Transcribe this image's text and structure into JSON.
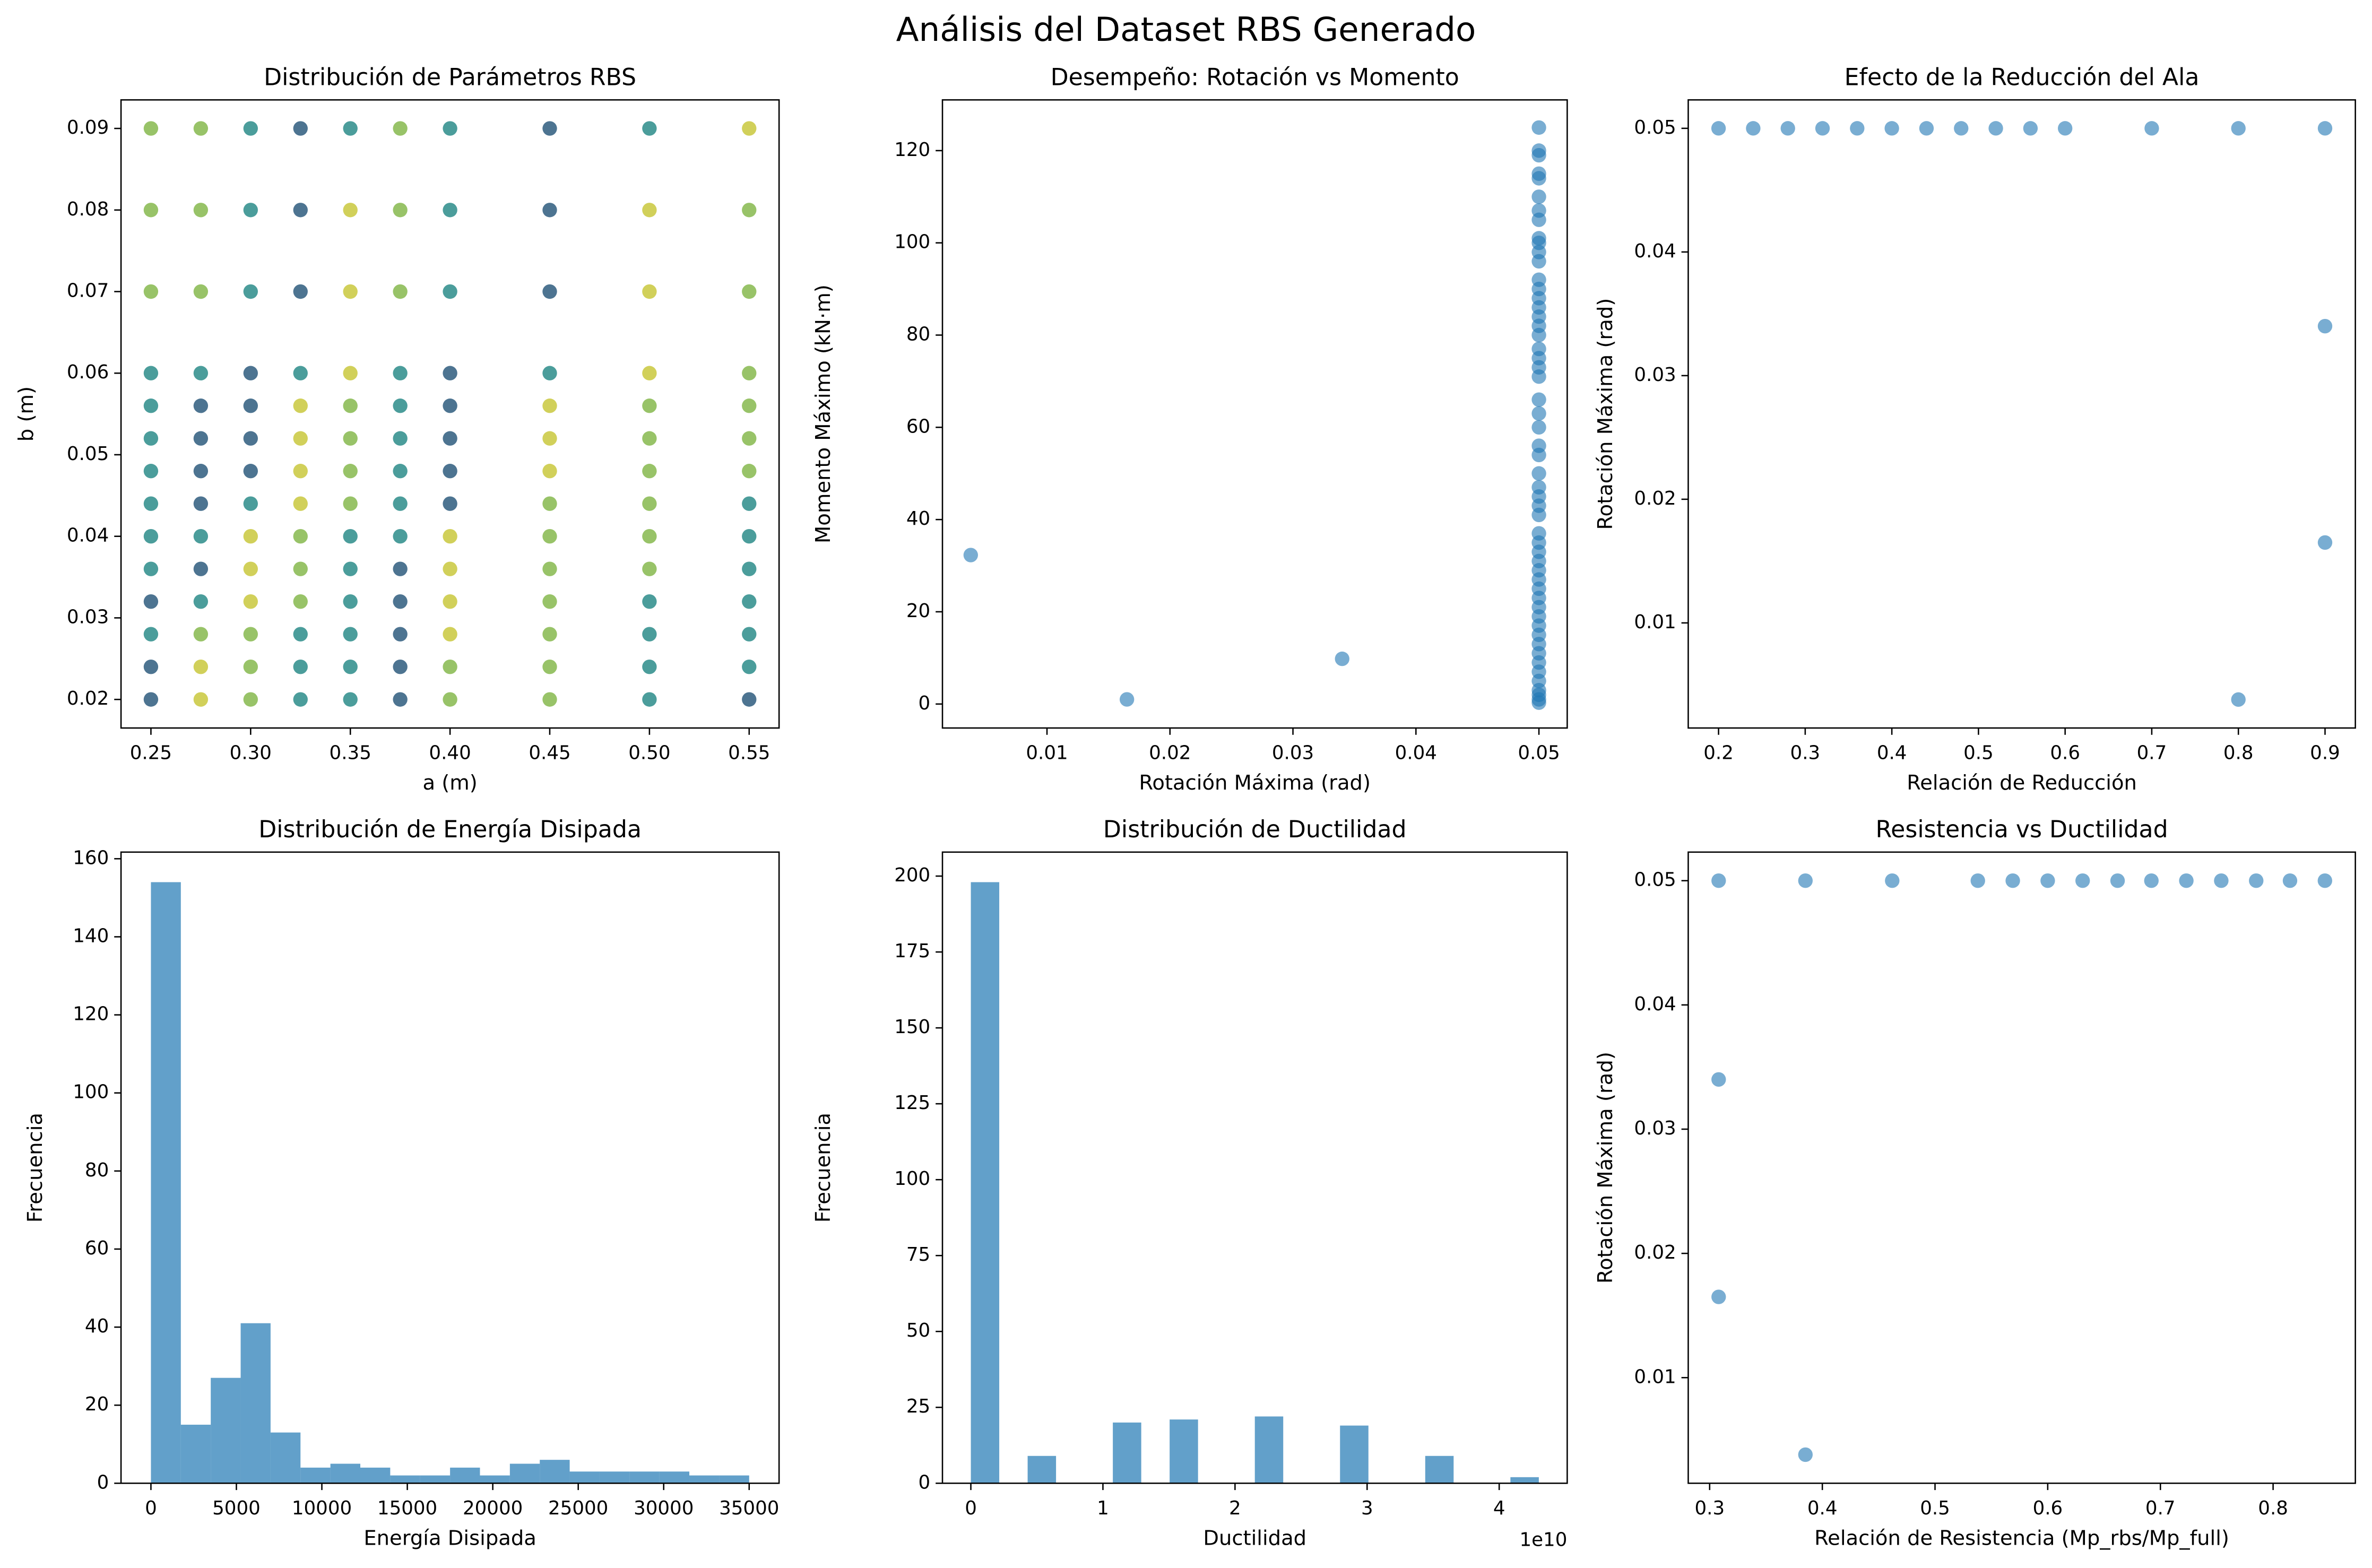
{
  "title": "Análisis del Dataset RBS Generado",
  "chart_data": [
    {
      "type": "scatter",
      "title": "Distribución de Parámetros RBS",
      "x_label": "a (m)",
      "y_label": "b (m)",
      "xlim": [
        0.235,
        0.565
      ],
      "xticks": [
        0.25,
        {
          "value": 0.3,
          "label": "0.30"
        },
        0.35,
        {
          "value": 0.4,
          "label": "0.40"
        },
        0.45,
        {
          "value": 0.5,
          "label": "0.50"
        },
        0.55
      ],
      "ylim": [
        0.0165,
        0.0935
      ],
      "yticks": [
        0.02,
        0.03,
        0.04,
        0.05,
        0.06,
        0.07,
        0.08,
        0.09
      ],
      "alpha": 0.85,
      "series": [
        {
          "color": "#2e5c7e",
          "x": [
            0.25,
            0.25,
            0.25,
            0.275,
            0.275,
            0.275,
            0.275,
            0.275,
            0.3,
            0.3,
            0.3,
            0.3,
            0.325,
            0.325,
            0.325,
            0.375,
            0.375,
            0.375,
            0.375,
            0.375,
            0.4,
            0.4,
            0.4,
            0.4,
            0.4,
            0.45,
            0.45,
            0.45,
            0.55
          ],
          "y": [
            0.032,
            0.024,
            0.02,
            0.056,
            0.052,
            0.048,
            0.044,
            0.036,
            0.06,
            0.056,
            0.052,
            0.048,
            0.09,
            0.08,
            0.07,
            0.036,
            0.032,
            0.028,
            0.024,
            0.02,
            0.06,
            0.056,
            0.052,
            0.048,
            0.044,
            0.09,
            0.08,
            0.07,
            0.02
          ]
        },
        {
          "color": "#2c8c8a",
          "x": [
            0.25,
            0.25,
            0.25,
            0.25,
            0.25,
            0.25,
            0.25,
            0.25,
            0.275,
            0.275,
            0.275,
            0.3,
            0.3,
            0.3,
            0.3,
            0.325,
            0.325,
            0.325,
            0.325,
            0.35,
            0.35,
            0.35,
            0.35,
            0.35,
            0.35,
            0.35,
            0.375,
            0.375,
            0.375,
            0.375,
            0.375,
            0.375,
            0.4,
            0.4,
            0.4,
            0.45,
            0.5,
            0.5,
            0.5,
            0.5,
            0.5,
            0.55,
            0.55,
            0.55,
            0.55,
            0.55,
            0.55
          ],
          "y": [
            0.06,
            0.056,
            0.052,
            0.048,
            0.044,
            0.04,
            0.036,
            0.028,
            0.06,
            0.04,
            0.032,
            0.09,
            0.08,
            0.07,
            0.044,
            0.06,
            0.028,
            0.024,
            0.02,
            0.09,
            0.04,
            0.036,
            0.032,
            0.028,
            0.024,
            0.02,
            0.06,
            0.056,
            0.052,
            0.048,
            0.044,
            0.04,
            0.09,
            0.08,
            0.07,
            0.06,
            0.09,
            0.032,
            0.028,
            0.024,
            0.02,
            0.044,
            0.04,
            0.036,
            0.032,
            0.028,
            0.024
          ]
        },
        {
          "color": "#86b84e",
          "x": [
            0.25,
            0.25,
            0.25,
            0.275,
            0.275,
            0.275,
            0.275,
            0.3,
            0.3,
            0.3,
            0.325,
            0.325,
            0.325,
            0.35,
            0.35,
            0.35,
            0.35,
            0.375,
            0.375,
            0.375,
            0.4,
            0.4,
            0.45,
            0.45,
            0.45,
            0.45,
            0.45,
            0.45,
            0.45,
            0.5,
            0.5,
            0.5,
            0.5,
            0.5,
            0.5,
            0.55,
            0.55,
            0.55,
            0.55,
            0.55,
            0.55
          ],
          "y": [
            0.09,
            0.08,
            0.07,
            0.09,
            0.08,
            0.07,
            0.028,
            0.028,
            0.024,
            0.02,
            0.04,
            0.036,
            0.032,
            0.056,
            0.052,
            0.048,
            0.044,
            0.09,
            0.08,
            0.07,
            0.024,
            0.02,
            0.044,
            0.04,
            0.036,
            0.032,
            0.028,
            0.024,
            0.02,
            0.056,
            0.052,
            0.048,
            0.044,
            0.04,
            0.036,
            0.08,
            0.07,
            0.06,
            0.056,
            0.052,
            0.048
          ]
        },
        {
          "color": "#c9c83d",
          "x": [
            0.275,
            0.275,
            0.3,
            0.3,
            0.3,
            0.325,
            0.325,
            0.325,
            0.325,
            0.35,
            0.35,
            0.35,
            0.4,
            0.4,
            0.4,
            0.4,
            0.45,
            0.45,
            0.45,
            0.5,
            0.5,
            0.5,
            0.55
          ],
          "y": [
            0.024,
            0.02,
            0.04,
            0.036,
            0.032,
            0.056,
            0.052,
            0.048,
            0.044,
            0.08,
            0.07,
            0.06,
            0.04,
            0.036,
            0.032,
            0.028,
            0.056,
            0.052,
            0.048,
            0.08,
            0.07,
            0.06,
            0.09
          ]
        }
      ]
    },
    {
      "type": "scatter",
      "title": "Desempeño: Rotación vs Momento",
      "x_label": "Rotación Máxima (rad)",
      "y_label": "Momento Máximo (kN·m)",
      "xlim": [
        0.0015,
        0.0523
      ],
      "xticks": [
        0.01,
        0.02,
        0.03,
        0.04,
        0.05
      ],
      "ylim": [
        -5.2,
        131
      ],
      "yticks": [
        0,
        20,
        40,
        60,
        80,
        100,
        120
      ],
      "alpha": 0.6,
      "series": [
        {
          "color": "#1f77b4",
          "x": [
            0.0038,
            0.0165,
            0.034,
            0.05,
            0.05,
            0.05,
            0.05,
            0.05,
            0.05,
            0.05,
            0.05,
            0.05,
            0.05,
            0.05,
            0.05,
            0.05,
            0.05,
            0.05,
            0.05,
            0.05,
            0.05,
            0.05,
            0.05,
            0.05,
            0.05,
            0.05,
            0.05,
            0.05,
            0.05,
            0.05,
            0.05,
            0.05,
            0.05,
            0.05,
            0.05,
            0.05,
            0.05,
            0.05,
            0.05,
            0.05,
            0.05,
            0.05,
            0.05,
            0.05,
            0.05,
            0.05,
            0.05,
            0.05,
            0.05,
            0.05,
            0.05,
            0.05,
            0.05,
            0.05,
            0.05,
            0.05,
            0.05
          ],
          "y": [
            32.3,
            1,
            9.8,
            125,
            120,
            119,
            115,
            114,
            110,
            107,
            105,
            101,
            100,
            98,
            96,
            92,
            90,
            88,
            86,
            84,
            82,
            80,
            77,
            75,
            73,
            71,
            66,
            63,
            60,
            56,
            54,
            50,
            47,
            45,
            43,
            41,
            37,
            35,
            33,
            31,
            29,
            27,
            25,
            23,
            21,
            19,
            17,
            15,
            13,
            11,
            9,
            7,
            5,
            3,
            2,
            1,
            0.3
          ]
        }
      ]
    },
    {
      "type": "scatter",
      "title": "Efecto de la Reducción del Ala",
      "x_label": "Relación de Reducción",
      "y_label": "Rotación Máxima (rad)",
      "xlim": [
        0.165,
        0.935
      ],
      "xticks": [
        0.2,
        0.3,
        0.4,
        0.5,
        0.6,
        0.7,
        0.8,
        0.9
      ],
      "ylim": [
        0.0015,
        0.0523
      ],
      "yticks": [
        0.01,
        0.02,
        0.03,
        0.04,
        0.05
      ],
      "alpha": 0.6,
      "series": [
        {
          "color": "#1f77b4",
          "x": [
            0.2,
            0.24,
            0.28,
            0.32,
            0.36,
            0.4,
            0.44,
            0.48,
            0.52,
            0.56,
            0.6,
            0.7,
            0.8,
            0.9,
            0.9,
            0.9,
            0.8
          ],
          "y": [
            0.05,
            0.05,
            0.05,
            0.05,
            0.05,
            0.05,
            0.05,
            0.05,
            0.05,
            0.05,
            0.05,
            0.05,
            0.05,
            0.05,
            0.034,
            0.0165,
            0.0038
          ]
        }
      ]
    },
    {
      "type": "histogram",
      "title": "Distribución de Energía Disipada",
      "x_label": "Energía Disipada",
      "y_label": "Frecuencia",
      "xlim": [
        -1750,
        36750
      ],
      "xticks": [
        0,
        5000,
        10000,
        15000,
        20000,
        25000,
        30000,
        35000
      ],
      "ylim": [
        0,
        161.7
      ],
      "yticks": [
        0,
        20,
        40,
        60,
        80,
        100,
        120,
        140,
        160
      ],
      "color": "#1f77b4",
      "alpha": 0.7,
      "bins": [
        0,
        1750,
        3500,
        5250,
        7000,
        8750,
        10500,
        12250,
        14000,
        15750,
        17500,
        19250,
        21000,
        22750,
        24500,
        26250,
        28000,
        29750,
        31500,
        33250,
        35000
      ],
      "counts": [
        154,
        15,
        27,
        41,
        13,
        4,
        5,
        4,
        2,
        2,
        4,
        2,
        5,
        6,
        3,
        3,
        3,
        3,
        2,
        2
      ]
    },
    {
      "type": "histogram",
      "title": "Distribución de Ductilidad",
      "x_label": "Ductilidad",
      "y_label": "Frecuencia",
      "x_offset_label": "1e10",
      "xlim": [
        -0.215,
        4.515
      ],
      "xticks": [
        0,
        1,
        2,
        3,
        4
      ],
      "ylim": [
        0,
        207.9
      ],
      "yticks": [
        0,
        25,
        50,
        75,
        100,
        125,
        150,
        175,
        200
      ],
      "color": "#1f77b4",
      "alpha": 0.7,
      "bins": [
        0,
        0.215,
        0.43,
        0.645,
        0.86,
        1.075,
        1.29,
        1.505,
        1.72,
        1.935,
        2.15,
        2.365,
        2.58,
        2.795,
        3.01,
        3.225,
        3.44,
        3.655,
        3.87,
        4.085,
        4.3
      ],
      "counts": [
        198,
        0,
        9,
        0,
        0,
        20,
        0,
        21,
        0,
        0,
        22,
        0,
        0,
        19,
        0,
        0,
        9,
        0,
        0,
        2
      ]
    },
    {
      "type": "scatter",
      "title": "Resistencia vs Ductilidad",
      "x_label": "Relación de Resistencia (Mp_rbs/Mp_full)",
      "y_label": "Rotación Máxima (rad)",
      "xlim": [
        0.281,
        0.873
      ],
      "xticks": [
        0.3,
        0.4,
        0.5,
        0.6,
        0.7,
        0.8
      ],
      "ylim": [
        0.0015,
        0.0523
      ],
      "yticks": [
        0.01,
        0.02,
        0.03,
        0.04,
        0.05
      ],
      "alpha": 0.6,
      "series": [
        {
          "color": "#1f77b4",
          "x": [
            0.308,
            0.385,
            0.462,
            0.538,
            0.569,
            0.6,
            0.631,
            0.662,
            0.692,
            0.723,
            0.754,
            0.785,
            0.815,
            0.846,
            0.308,
            0.308,
            0.385
          ],
          "y": [
            0.05,
            0.05,
            0.05,
            0.05,
            0.05,
            0.05,
            0.05,
            0.05,
            0.05,
            0.05,
            0.05,
            0.05,
            0.05,
            0.05,
            0.034,
            0.0165,
            0.0038
          ]
        }
      ]
    }
  ]
}
